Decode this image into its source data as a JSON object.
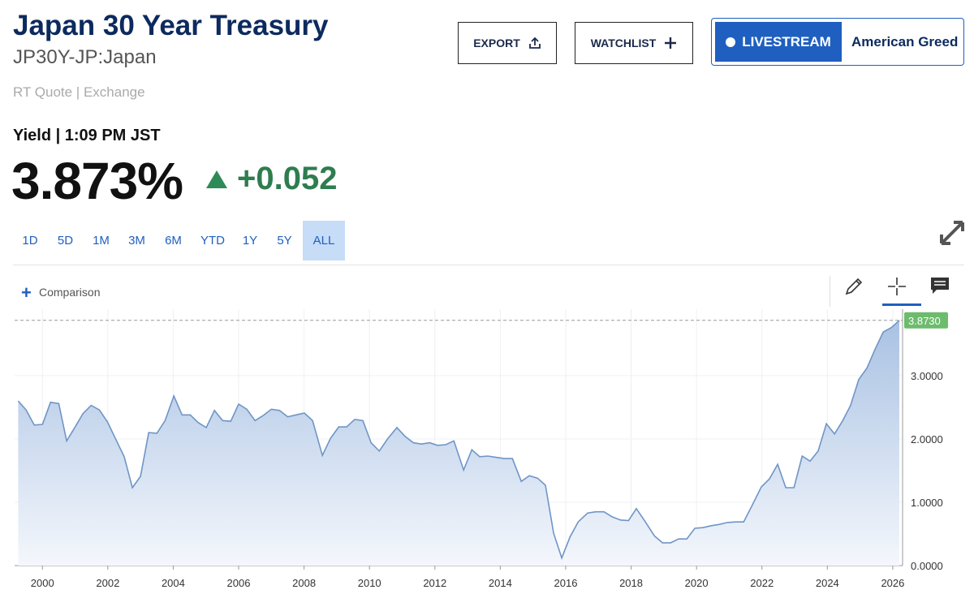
{
  "header": {
    "title": "Japan 30 Year Treasury",
    "symbol": "JP30Y-JP:Japan",
    "source": "RT Quote | Exchange",
    "quote_label": "Yield | 1:09 PM JST",
    "price": "3.873%",
    "change": "+0.052"
  },
  "buttons": {
    "export": "EXPORT",
    "watchlist": "WATCHLIST",
    "livestream": "LIVESTREAM",
    "show": "American Greed"
  },
  "ranges": [
    "1D",
    "5D",
    "1M",
    "3M",
    "6M",
    "YTD",
    "1Y",
    "5Y",
    "ALL"
  ],
  "selected_range": "ALL",
  "comparison": "Comparison",
  "chart_data": {
    "type": "area",
    "color": "#6f95c6",
    "grid": true,
    "x": [
      1999.26,
      1999.5,
      1999.75,
      2000.0,
      2000.25,
      2000.5,
      2000.74,
      2000.99,
      2001.24,
      2001.49,
      2001.74,
      2001.99,
      2002.23,
      2002.5,
      2002.75,
      2003.0,
      2003.25,
      2003.5,
      2003.75,
      2004.02,
      2004.27,
      2004.52,
      2004.76,
      2005.01,
      2005.26,
      2005.51,
      2005.76,
      2006.0,
      2006.25,
      2006.5,
      2006.75,
      2007.0,
      2007.25,
      2007.5,
      2007.75,
      2008.01,
      2008.26,
      2008.56,
      2008.81,
      2009.06,
      2009.3,
      2009.55,
      2009.8,
      2010.05,
      2010.3,
      2010.55,
      2010.84,
      2011.09,
      2011.34,
      2011.59,
      2011.84,
      2012.08,
      2012.33,
      2012.58,
      2012.88,
      2013.13,
      2013.37,
      2013.62,
      2013.87,
      2014.12,
      2014.37,
      2014.64,
      2014.89,
      2015.14,
      2015.38,
      2015.63,
      2015.88,
      2016.13,
      2016.38,
      2016.67,
      2016.92,
      2017.17,
      2017.42,
      2017.67,
      2017.92,
      2018.16,
      2018.41,
      2018.71,
      2018.96,
      2019.21,
      2019.45,
      2019.7,
      2019.95,
      2020.2,
      2020.45,
      2020.69,
      2020.94,
      2021.19,
      2021.44,
      2021.69,
      2021.98,
      2022.23,
      2022.48,
      2022.73,
      2022.98,
      2023.23,
      2023.47,
      2023.72,
      2023.97,
      2024.22,
      2024.47,
      2024.71,
      2024.96,
      2025.21,
      2025.46,
      2025.71,
      2025.96,
      2026.2
    ],
    "values": [
      2.6,
      2.46,
      2.22,
      2.23,
      2.58,
      2.56,
      1.97,
      2.18,
      2.4,
      2.53,
      2.46,
      2.27,
      2.01,
      1.72,
      1.23,
      1.41,
      2.1,
      2.09,
      2.29,
      2.68,
      2.38,
      2.38,
      2.26,
      2.18,
      2.45,
      2.29,
      2.28,
      2.55,
      2.47,
      2.29,
      2.37,
      2.47,
      2.45,
      2.35,
      2.38,
      2.41,
      2.29,
      1.74,
      2.01,
      2.19,
      2.19,
      2.31,
      2.29,
      1.94,
      1.81,
      2.0,
      2.18,
      2.04,
      1.94,
      1.92,
      1.94,
      1.9,
      1.91,
      1.97,
      1.51,
      1.83,
      1.72,
      1.73,
      1.71,
      1.69,
      1.69,
      1.33,
      1.42,
      1.38,
      1.27,
      0.51,
      0.12,
      0.45,
      0.69,
      0.83,
      0.85,
      0.85,
      0.77,
      0.72,
      0.71,
      0.9,
      0.71,
      0.47,
      0.36,
      0.36,
      0.42,
      0.42,
      0.59,
      0.6,
      0.63,
      0.65,
      0.68,
      0.69,
      0.69,
      0.94,
      1.24,
      1.37,
      1.6,
      1.23,
      1.23,
      1.73,
      1.65,
      1.81,
      2.24,
      2.08,
      2.29,
      2.53,
      2.94,
      3.12,
      3.42,
      3.69,
      3.76,
      3.873
    ],
    "xlim": [
      1999.15,
      2026.3
    ],
    "xticks": [
      2000,
      2002,
      2004,
      2006,
      2008,
      2010,
      2012,
      2014,
      2016,
      2018,
      2020,
      2022,
      2024,
      2026
    ],
    "ylim": [
      0,
      4.05
    ],
    "yticks": [
      {
        "value": 0,
        "label": "0.0000"
      },
      {
        "value": 1,
        "label": "1.0000"
      },
      {
        "value": 2,
        "label": "2.0000"
      },
      {
        "value": 3,
        "label": "3.0000"
      }
    ],
    "last_value": {
      "value": 3.873,
      "label": "3.8730"
    }
  }
}
